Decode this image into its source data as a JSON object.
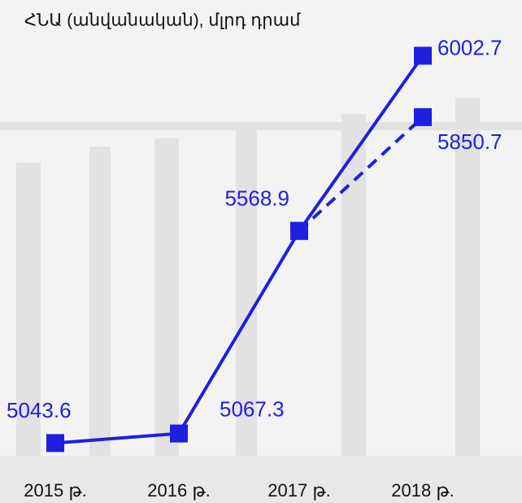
{
  "chart_data": {
    "type": "line",
    "title": "ՀՆԱ (անվանական), մլրդ դրամ",
    "categories": [
      "2015 թ.",
      "2016 թ.",
      "2017 թ.",
      "2018 թ."
    ],
    "series": [
      {
        "color": "#1f1fe0",
        "dash": false,
        "values": [
          5043.6,
          5067.3,
          5568.9,
          6002.7
        ]
      },
      {
        "color": "#1f1fe0",
        "dash": true,
        "values": [
          null,
          null,
          5568.9,
          5850.7
        ]
      }
    ],
    "ylim": [
      5000,
      6050
    ]
  }
}
